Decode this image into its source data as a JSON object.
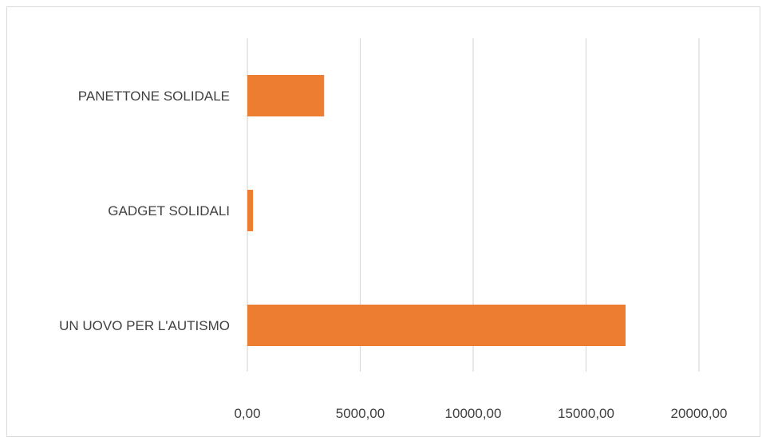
{
  "chart_data": {
    "type": "bar",
    "orientation": "horizontal",
    "title": "",
    "xlabel": "",
    "ylabel": "",
    "categories": [
      "PANETTONE SOLIDALE",
      "GADGET SOLIDALI",
      "UN UOVO PER L'AUTISMO"
    ],
    "values": [
      3400,
      250,
      16750
    ],
    "xlim": [
      0,
      20000
    ],
    "xticks": [
      0,
      5000,
      10000,
      15000,
      20000
    ],
    "xtick_labels": [
      "0,00",
      "5000,00",
      "10000,00",
      "15000,00",
      "20000,00"
    ],
    "grid": "vertical",
    "legend": "none",
    "bar_color": "#ED7D31",
    "grid_color": "#d9d9d9"
  }
}
